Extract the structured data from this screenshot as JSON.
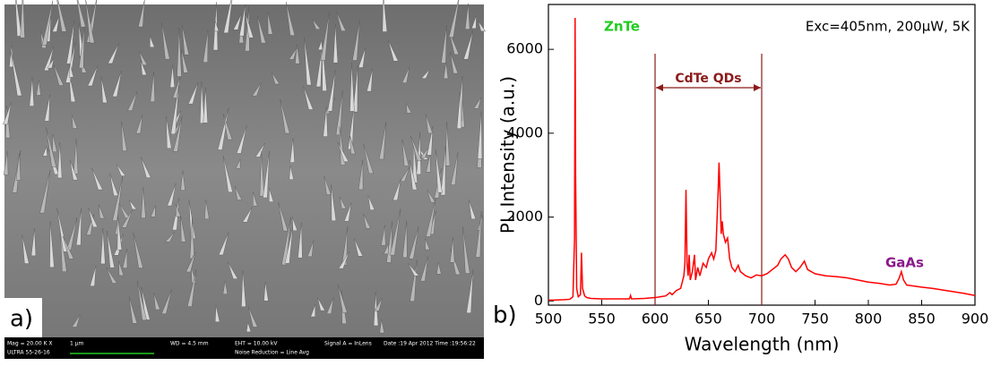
{
  "image_panel": {
    "label": "a)",
    "info_bar": {
      "row1": [
        "Mag = 20.00 K X",
        "1 μm",
        "WD = 4.5 mm",
        "EHT = 10.00 kV",
        "Signal A = InLens",
        "Date :19 Apr 2012 Time :19:56:22"
      ],
      "row2": [
        "ULTRA 55-26-16",
        "Noise Reduction = Line Avg"
      ]
    }
  },
  "chart_data": {
    "type": "line",
    "panel_label": "b)",
    "x_label": "Wavelength (nm)",
    "y_label": "PL Intensity (a.u.)",
    "xlim": [
      500,
      900
    ],
    "ylim": [
      -100,
      7070
    ],
    "xticks": [
      500,
      550,
      600,
      650,
      700,
      750,
      800,
      850,
      900
    ],
    "yticks": [
      0,
      2000,
      4000,
      6000
    ],
    "annotations": [
      {
        "text": "ZnTe",
        "color": "#22cc22"
      },
      {
        "text": "Exc=405nm, 200μW, 5K",
        "color": "#000000"
      },
      {
        "text": "GaAs",
        "color": "#8b1a8b"
      }
    ],
    "region": {
      "label": "CdTe QDs",
      "x": [
        600,
        700
      ],
      "color": "#8b1a1a"
    },
    "series": [
      {
        "color": "#ff0000",
        "x": [
          500,
          505,
          510,
          515,
          520,
          523,
          524.5,
          525,
          525.5,
          526.5,
          528,
          530,
          531,
          532,
          534,
          536,
          540,
          550,
          560,
          570,
          576,
          577,
          578,
          590,
          600,
          605,
          610,
          614,
          616,
          620,
          624,
          627,
          628,
          629,
          630,
          631,
          632,
          633,
          635,
          637,
          638,
          640,
          642,
          645,
          648,
          650,
          653,
          655,
          657,
          659,
          660,
          661,
          662,
          663,
          664,
          666,
          668,
          670,
          672,
          675,
          678,
          680,
          685,
          690,
          695,
          700,
          705,
          710,
          715,
          718,
          722,
          725,
          728,
          732,
          736,
          740,
          743,
          750,
          760,
          770,
          780,
          790,
          800,
          810,
          820,
          826,
          829,
          831,
          833,
          836,
          850,
          860,
          870,
          880,
          890,
          900
        ],
        "values": [
          20,
          20,
          25,
          30,
          40,
          100,
          1500,
          6750,
          3000,
          300,
          100,
          150,
          1150,
          300,
          120,
          80,
          60,
          50,
          50,
          50,
          50,
          130,
          50,
          60,
          80,
          100,
          120,
          200,
          150,
          250,
          300,
          600,
          900,
          2650,
          900,
          600,
          1100,
          500,
          700,
          1100,
          500,
          800,
          600,
          900,
          800,
          1000,
          1150,
          1000,
          1200,
          2500,
          3300,
          2500,
          1600,
          1900,
          1600,
          1400,
          1500,
          1000,
          800,
          700,
          850,
          700,
          600,
          550,
          620,
          600,
          650,
          750,
          850,
          1000,
          1100,
          1000,
          800,
          700,
          800,
          950,
          750,
          650,
          600,
          580,
          550,
          500,
          450,
          420,
          380,
          400,
          550,
          700,
          500,
          380,
          330,
          300,
          260,
          220,
          180,
          130
        ]
      }
    ]
  }
}
